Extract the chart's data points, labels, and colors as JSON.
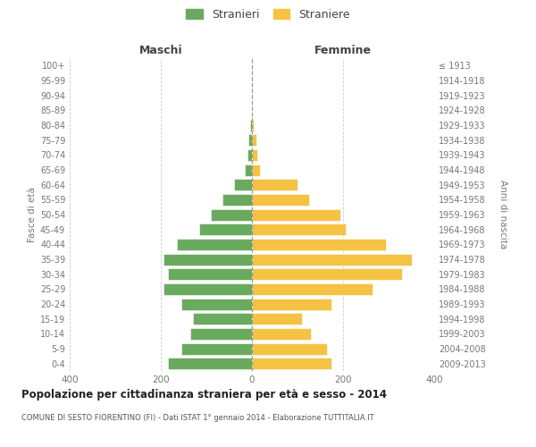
{
  "age_groups": [
    "0-4",
    "5-9",
    "10-14",
    "15-19",
    "20-24",
    "25-29",
    "30-34",
    "35-39",
    "40-44",
    "45-49",
    "50-54",
    "55-59",
    "60-64",
    "65-69",
    "70-74",
    "75-79",
    "80-84",
    "85-89",
    "90-94",
    "95-99",
    "100+"
  ],
  "birth_years": [
    "2009-2013",
    "2004-2008",
    "1999-2003",
    "1994-1998",
    "1989-1993",
    "1984-1988",
    "1979-1983",
    "1974-1978",
    "1969-1973",
    "1964-1968",
    "1959-1963",
    "1954-1958",
    "1949-1953",
    "1944-1948",
    "1939-1943",
    "1934-1938",
    "1929-1933",
    "1924-1928",
    "1919-1923",
    "1914-1918",
    "≤ 1913"
  ],
  "males": [
    185,
    155,
    135,
    130,
    155,
    195,
    185,
    195,
    165,
    115,
    90,
    65,
    40,
    15,
    10,
    8,
    3,
    0,
    0,
    0,
    0
  ],
  "females": [
    175,
    165,
    130,
    110,
    175,
    265,
    330,
    350,
    295,
    205,
    195,
    125,
    100,
    18,
    12,
    10,
    3,
    0,
    0,
    0,
    0
  ],
  "male_color": "#6aaa5e",
  "female_color": "#f5c244",
  "background_color": "#ffffff",
  "grid_color": "#cccccc",
  "title": "Popolazione per cittadinanza straniera per età e sesso - 2014",
  "subtitle": "COMUNE DI SESTO FIORENTINO (FI) - Dati ISTAT 1° gennaio 2014 - Elaborazione TUTTITALIA.IT",
  "xlabel_left": "Maschi",
  "xlabel_right": "Femmine",
  "ylabel_left": "Fasce di età",
  "ylabel_right": "Anni di nascita",
  "legend_male": "Stranieri",
  "legend_female": "Straniere",
  "xlim": 400,
  "label_color": "#777777",
  "header_color": "#444444"
}
